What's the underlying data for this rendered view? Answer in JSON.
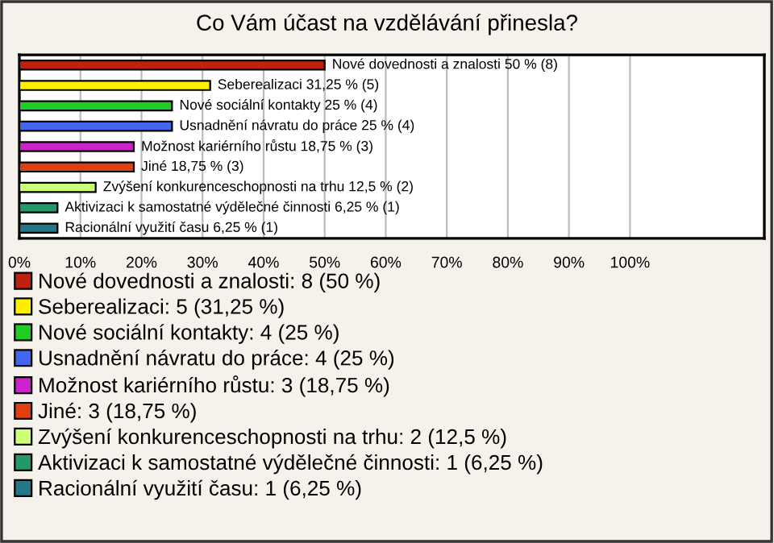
{
  "chart_data": {
    "type": "bar",
    "orientation": "horizontal",
    "title": "Co Vám účast na vzdělávání přinesla?",
    "categories": [
      null,
      null,
      null,
      null,
      null,
      null,
      null,
      null,
      null
    ],
    "series": [
      {
        "name": "Nové dovednosti a znalosti: 8 (50 %)",
        "color": "#c0200f",
        "values": [
          50,
          null,
          null,
          null,
          null,
          null,
          null,
          null,
          null
        ],
        "value_labels": [
          "Nové dovednosti a znalosti 50 % (8)",
          null,
          null,
          null,
          null,
          null,
          null,
          null,
          null
        ]
      },
      {
        "name": "Seberealizaci: 5 (31,25 %)",
        "color": "#ffee00",
        "values": [
          null,
          31.25,
          null,
          null,
          null,
          null,
          null,
          null,
          null
        ],
        "value_labels": [
          null,
          "Seberealizaci 31,25 % (5)",
          null,
          null,
          null,
          null,
          null,
          null,
          null
        ]
      },
      {
        "name": "Nové sociální kontakty: 4 (25 %)",
        "color": "#22cc22",
        "values": [
          null,
          null,
          25,
          null,
          null,
          null,
          null,
          null,
          null
        ],
        "value_labels": [
          null,
          null,
          "Nové sociální kontakty 25 % (4)",
          null,
          null,
          null,
          null,
          null,
          null
        ]
      },
      {
        "name": "Usnadnění návratu do práce: 4 (25 %)",
        "color": "#4466ee",
        "values": [
          null,
          null,
          null,
          25,
          null,
          null,
          null,
          null,
          null
        ],
        "value_labels": [
          null,
          null,
          null,
          "Usnadnění návratu do práce 25 % (4)",
          null,
          null,
          null,
          null,
          null
        ]
      },
      {
        "name": "Možnost kariérního růstu: 3 (18,75 %)",
        "color": "#cc22cc",
        "values": [
          null,
          null,
          null,
          null,
          18.75,
          null,
          null,
          null,
          null
        ],
        "value_labels": [
          null,
          null,
          null,
          null,
          "Možnost kariérního růstu 18,75 % (3)",
          null,
          null,
          null,
          null
        ]
      },
      {
        "name": "Jiné: 3 (18,75 %)",
        "color": "#e04010",
        "values": [
          null,
          null,
          null,
          null,
          null,
          18.75,
          null,
          null,
          null
        ],
        "value_labels": [
          null,
          null,
          null,
          null,
          null,
          "Jiné 18,75 % (3)",
          null,
          null,
          null
        ]
      },
      {
        "name": "Zvýšení konkurenceschopnosti na trhu: 2 (12,5 %)",
        "color": "#ccff77",
        "values": [
          null,
          null,
          null,
          null,
          null,
          null,
          12.5,
          null,
          null
        ],
        "value_labels": [
          null,
          null,
          null,
          null,
          null,
          null,
          "Zvýšení konkurenceschopnosti na trhu 12,5 % (2)",
          null,
          null
        ]
      },
      {
        "name": "Aktivizaci k samostatné výdělečné činnosti: 1 (6,25 %)",
        "color": "#229966",
        "values": [
          null,
          null,
          null,
          null,
          null,
          null,
          null,
          6.25,
          null
        ],
        "value_labels": [
          null,
          null,
          null,
          null,
          null,
          null,
          null,
          "Aktivizaci k samostatné výdělečné činnosti 6,25 % (1)",
          null
        ]
      },
      {
        "name": "Racionální využití času: 1 (6,25 %)",
        "color": "#227788",
        "values": [
          null,
          null,
          null,
          null,
          null,
          null,
          null,
          null,
          6.25
        ],
        "value_labels": [
          null,
          null,
          null,
          null,
          null,
          null,
          null,
          null,
          "Racionální využití času 6,25 % (1)"
        ]
      }
    ],
    "xlim": [
      0,
      122
    ],
    "xticks": [
      {
        "value": 0,
        "label": "0%"
      },
      {
        "value": 10,
        "label": "10%"
      },
      {
        "value": 20,
        "label": "20%"
      },
      {
        "value": 30,
        "label": "30%"
      },
      {
        "value": 40,
        "label": "40%"
      },
      {
        "value": 50,
        "label": "50%"
      },
      {
        "value": 60,
        "label": "60%"
      },
      {
        "value": 70,
        "label": "70%"
      },
      {
        "value": 80,
        "label": "80%"
      },
      {
        "value": 90,
        "label": "90%"
      },
      {
        "value": 100,
        "label": "100%"
      }
    ],
    "grid": "x",
    "legend": "bottom",
    "tick_labels": "x"
  }
}
